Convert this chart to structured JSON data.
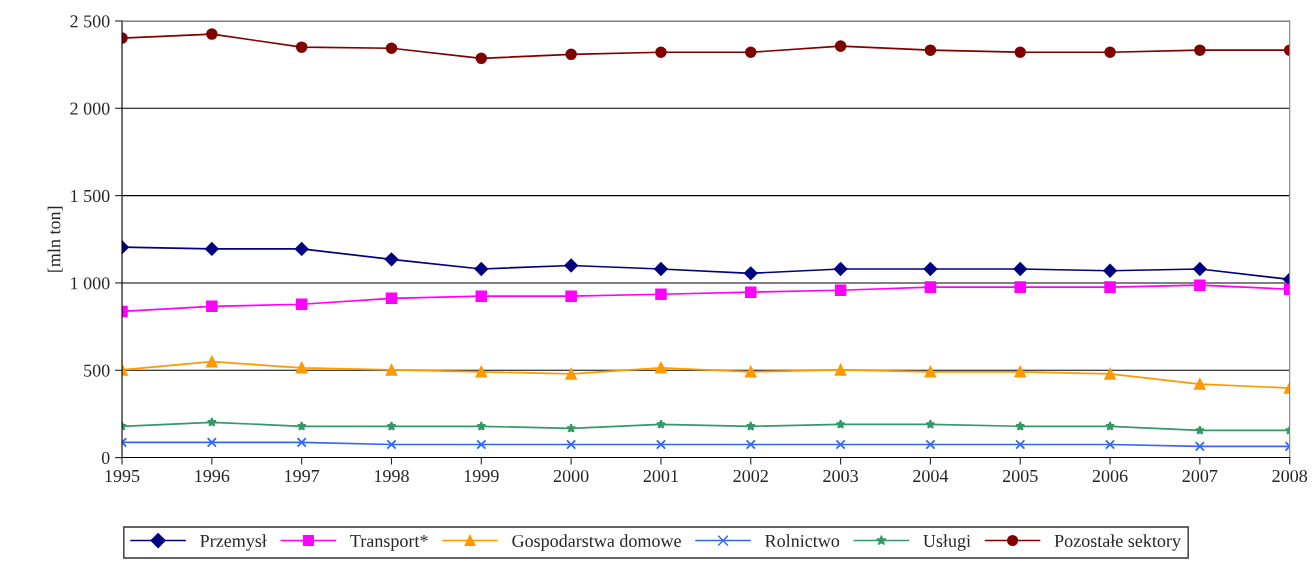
{
  "chart_data": {
    "type": "line",
    "ylabel": "[mln ton]",
    "x": [
      1995,
      1996,
      1997,
      1998,
      1999,
      2000,
      2001,
      2002,
      2003,
      2004,
      2005,
      2006,
      2007,
      2008
    ],
    "xlim": [
      1995,
      2008
    ],
    "xticks": [
      1995,
      1996,
      1997,
      1998,
      1999,
      2000,
      2001,
      2002,
      2003,
      2004,
      2005,
      2006,
      2007,
      2008
    ],
    "ylim": [
      0,
      2500
    ],
    "yticks": [
      0,
      {
        "value": 500,
        "label": "500"
      },
      {
        "value": 1000,
        "label": "1 000"
      },
      {
        "value": 1500,
        "label": "1 500"
      },
      {
        "value": 2000,
        "label": "2 000"
      },
      {
        "value": 2500,
        "label": "2 500"
      }
    ],
    "grid": "y",
    "legend": "bottom",
    "line_style": "solid",
    "series": [
      {
        "name": "Przemysł",
        "color": "#000080",
        "marker": "diamond",
        "values": [
          1205,
          1195,
          1195,
          1135,
          1080,
          1100,
          1080,
          1055,
          1080,
          1080,
          1080,
          1070,
          1080,
          1020
        ]
      },
      {
        "name": "Transport*",
        "color": "#ff00ff",
        "marker": "square",
        "values": [
          837,
          866,
          878,
          912,
          924,
          924,
          935,
          947,
          958,
          976,
          976,
          976,
          987,
          964
        ]
      },
      {
        "name": "Gospodarstwa domowe",
        "color": "#ff9900",
        "marker": "triangle",
        "values": [
          502,
          549,
          514,
          502,
          491,
          479,
          514,
          491,
          502,
          491,
          491,
          479,
          421,
          398
        ]
      },
      {
        "name": "Rolnictwo",
        "color": "#3366ff",
        "marker": "cross",
        "values": [
          87,
          87,
          87,
          75,
          75,
          75,
          75,
          75,
          75,
          75,
          75,
          75,
          64,
          64
        ]
      },
      {
        "name": "Usługi",
        "color": "#339966",
        "marker": "star",
        "values": [
          179,
          202,
          179,
          179,
          179,
          167,
          190,
          179,
          190,
          190,
          179,
          179,
          156,
          156
        ]
      },
      {
        "name": "Pozostałe sektory",
        "color": "#800000",
        "marker": "circle",
        "values": [
          2402,
          2425,
          2350,
          2344,
          2286,
          2309,
          2321,
          2321,
          2356,
          2333,
          2321,
          2321,
          2333,
          2333
        ]
      }
    ]
  }
}
